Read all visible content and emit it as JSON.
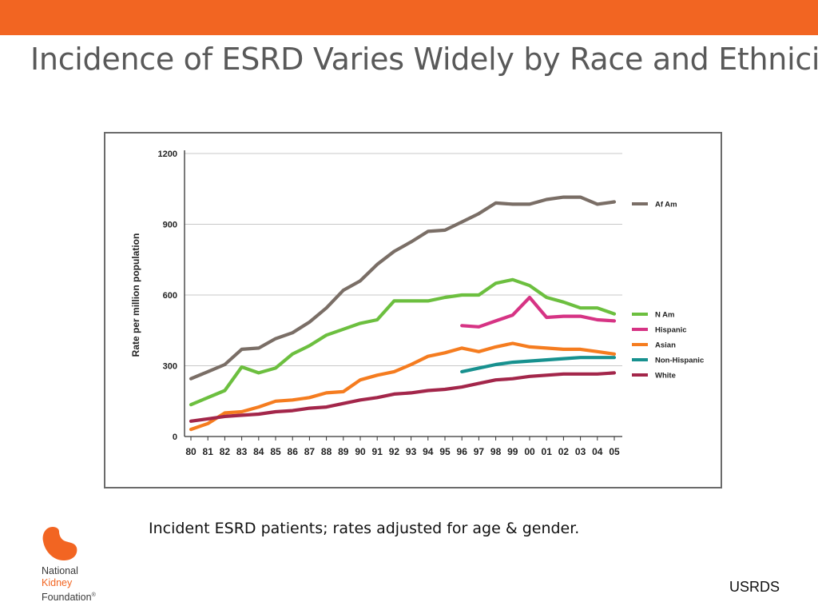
{
  "colors": {
    "header_bar": "#f26522",
    "title_text": "#595959",
    "grid": "#c8c8c8"
  },
  "slide": {
    "title": "Incidence of ESRD Varies Widely by Race and Ethnicity",
    "caption": "Incident ESRD patients; rates adjusted for age & gender.",
    "source": "USRDS"
  },
  "logo": {
    "line1": "National",
    "line2": "Kidney",
    "line3": "Foundation",
    "mark": "®",
    "icon": "kidney-icon"
  },
  "chart_data": {
    "type": "line",
    "title": "",
    "xlabel": "",
    "ylabel": "Rate per million population",
    "ylim": [
      0,
      1200
    ],
    "yticks": [
      0,
      300,
      600,
      900,
      1200
    ],
    "grid": true,
    "legend_placement": "right",
    "x": [
      "80",
      "81",
      "82",
      "83",
      "84",
      "85",
      "86",
      "87",
      "88",
      "89",
      "90",
      "91",
      "92",
      "93",
      "94",
      "95",
      "96",
      "97",
      "98",
      "99",
      "00",
      "01",
      "02",
      "03",
      "04",
      "05"
    ],
    "series": [
      {
        "name": "Af Am",
        "color": "#7a6e66",
        "values": [
          245,
          275,
          305,
          370,
          375,
          415,
          440,
          485,
          545,
          620,
          660,
          730,
          785,
          825,
          870,
          875,
          910,
          945,
          990,
          985,
          985,
          1005,
          1015,
          1015,
          985,
          995
        ]
      },
      {
        "name": "N Am",
        "color": "#6cbf3f",
        "values": [
          135,
          165,
          195,
          295,
          270,
          290,
          350,
          385,
          430,
          455,
          480,
          495,
          575,
          575,
          575,
          590,
          600,
          600,
          650,
          665,
          640,
          590,
          570,
          545,
          545,
          520
        ]
      },
      {
        "name": "Hispanic",
        "color": "#d63384",
        "values": [
          null,
          null,
          null,
          null,
          null,
          null,
          null,
          null,
          null,
          null,
          null,
          null,
          null,
          null,
          null,
          null,
          470,
          465,
          490,
          515,
          590,
          505,
          510,
          510,
          495,
          490
        ]
      },
      {
        "name": "Asian",
        "color": "#f57c1f",
        "values": [
          30,
          55,
          100,
          105,
          125,
          150,
          155,
          165,
          185,
          190,
          240,
          260,
          275,
          305,
          340,
          355,
          375,
          360,
          380,
          395,
          380,
          375,
          370,
          370,
          360,
          350
        ]
      },
      {
        "name": "Non-Hispanic",
        "color": "#17918f",
        "values": [
          null,
          null,
          null,
          null,
          null,
          null,
          null,
          null,
          null,
          null,
          null,
          null,
          null,
          null,
          null,
          null,
          275,
          290,
          305,
          315,
          320,
          325,
          330,
          335,
          335,
          335
        ]
      },
      {
        "name": "White",
        "color": "#a3264a",
        "values": [
          65,
          75,
          85,
          90,
          95,
          105,
          110,
          120,
          125,
          140,
          155,
          165,
          180,
          185,
          195,
          200,
          210,
          225,
          240,
          245,
          255,
          260,
          265,
          265,
          265,
          270
        ]
      }
    ]
  }
}
